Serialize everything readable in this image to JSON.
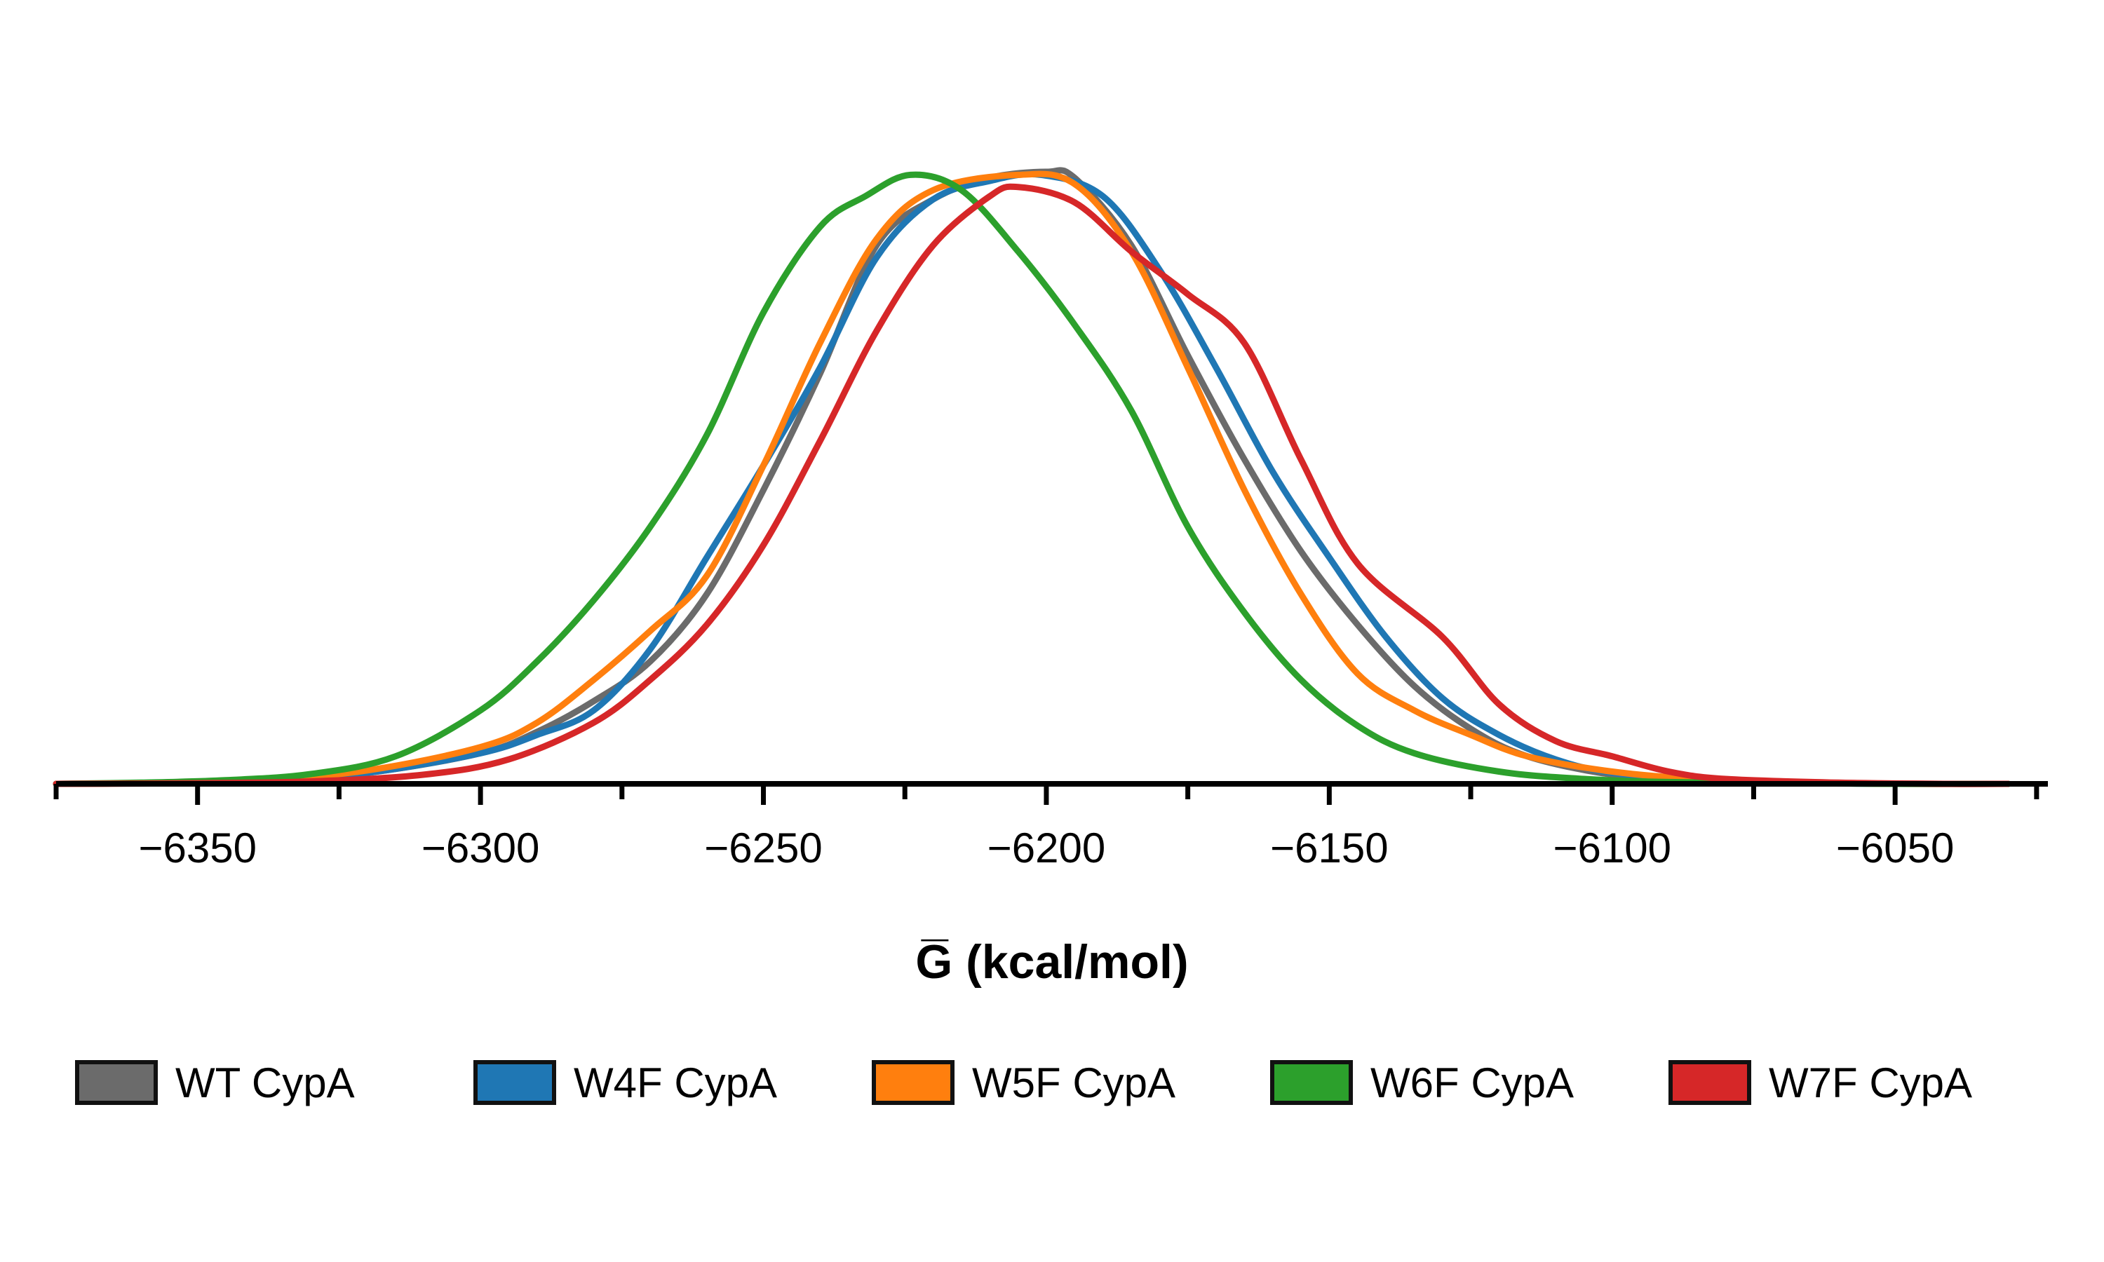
{
  "chart_data": {
    "type": "line",
    "title": "",
    "xlabel": "G̅ (kcal/mol)",
    "ylabel": "",
    "xlim": [
      -6375,
      -6023
    ],
    "ylim": [
      0,
      1.0
    ],
    "x_ticks": [
      -6350,
      -6300,
      -6250,
      -6200,
      -6150,
      -6100,
      -6050
    ],
    "x_tick_labels": [
      "−6350",
      "−6300",
      "−6250",
      "−6200",
      "−6150",
      "−6100",
      "−6050"
    ],
    "x_minor_ticks": [
      -6375,
      -6325,
      -6275,
      -6225,
      -6175,
      -6125,
      -6075,
      -6025
    ],
    "grid": false,
    "legend_position": "bottom",
    "series": [
      {
        "name": "WT CypA",
        "color": "#6b6b6b",
        "x": [
          -6375,
          -6360,
          -6340,
          -6320,
          -6300,
          -6290,
          -6280,
          -6270,
          -6260,
          -6250,
          -6240,
          -6230,
          -6220,
          -6210,
          -6200,
          -6195,
          -6185,
          -6175,
          -6165,
          -6155,
          -6145,
          -6135,
          -6125,
          -6115,
          -6100,
          -6085,
          -6070,
          -6050,
          -6030
        ],
        "y": [
          0,
          0.001,
          0.004,
          0.018,
          0.05,
          0.085,
          0.135,
          0.2,
          0.31,
          0.48,
          0.67,
          0.88,
          0.955,
          0.99,
          1.0,
          0.99,
          0.88,
          0.7,
          0.53,
          0.38,
          0.26,
          0.16,
          0.09,
          0.045,
          0.015,
          0.005,
          0.002,
          0,
          0
        ]
      },
      {
        "name": "W4F CypA",
        "color": "#1f77b4",
        "x": [
          -6375,
          -6360,
          -6340,
          -6320,
          -6300,
          -6290,
          -6280,
          -6270,
          -6260,
          -6250,
          -6240,
          -6230,
          -6220,
          -6210,
          -6201,
          -6190,
          -6180,
          -6170,
          -6160,
          -6150,
          -6140,
          -6130,
          -6120,
          -6110,
          -6100,
          -6085,
          -6070,
          -6050,
          -6030
        ],
        "y": [
          0,
          0.001,
          0.004,
          0.018,
          0.05,
          0.08,
          0.12,
          0.22,
          0.37,
          0.52,
          0.68,
          0.86,
          0.955,
          0.985,
          0.995,
          0.96,
          0.84,
          0.68,
          0.51,
          0.37,
          0.24,
          0.14,
          0.08,
          0.04,
          0.018,
          0.007,
          0.002,
          0,
          0
        ]
      },
      {
        "name": "W5F CypA",
        "color": "#ff7f0e",
        "x": [
          -6375,
          -6360,
          -6340,
          -6320,
          -6300,
          -6290,
          -6280,
          -6270,
          -6260,
          -6250,
          -6240,
          -6230,
          -6220,
          -6205,
          -6195,
          -6185,
          -6175,
          -6165,
          -6155,
          -6145,
          -6135,
          -6125,
          -6115,
          -6100,
          -6085,
          -6070,
          -6050,
          -6030
        ],
        "y": [
          0,
          0.001,
          0.005,
          0.022,
          0.06,
          0.1,
          0.17,
          0.25,
          0.34,
          0.52,
          0.72,
          0.89,
          0.97,
          0.995,
          0.98,
          0.87,
          0.68,
          0.48,
          0.31,
          0.18,
          0.12,
          0.08,
          0.045,
          0.02,
          0.008,
          0.003,
          0,
          0
        ]
      },
      {
        "name": "W6F CypA",
        "color": "#2ca02c",
        "x": [
          -6375,
          -6360,
          -6345,
          -6330,
          -6315,
          -6300,
          -6290,
          -6280,
          -6270,
          -6260,
          -6250,
          -6240,
          -6232,
          -6224,
          -6215,
          -6205,
          -6195,
          -6185,
          -6175,
          -6165,
          -6155,
          -6145,
          -6135,
          -6120,
          -6105,
          -6090,
          -6070,
          -6050,
          -6030
        ],
        "y": [
          0,
          0.002,
          0.006,
          0.016,
          0.045,
          0.12,
          0.2,
          0.3,
          0.42,
          0.57,
          0.77,
          0.91,
          0.96,
          0.995,
          0.97,
          0.87,
          0.75,
          0.61,
          0.42,
          0.28,
          0.17,
          0.095,
          0.05,
          0.02,
          0.008,
          0.003,
          0.001,
          0,
          0
        ]
      },
      {
        "name": "W7F CypA",
        "color": "#d62728",
        "x": [
          -6375,
          -6350,
          -6330,
          -6310,
          -6295,
          -6280,
          -6270,
          -6260,
          -6250,
          -6240,
          -6230,
          -6220,
          -6210,
          -6205,
          -6195,
          -6185,
          -6175,
          -6165,
          -6155,
          -6145,
          -6130,
          -6120,
          -6110,
          -6100,
          -6090,
          -6080,
          -6060,
          -6040,
          -6030
        ],
        "y": [
          0,
          0.001,
          0.004,
          0.015,
          0.04,
          0.1,
          0.17,
          0.26,
          0.39,
          0.56,
          0.74,
          0.88,
          0.96,
          0.975,
          0.95,
          0.87,
          0.8,
          0.72,
          0.53,
          0.36,
          0.24,
          0.13,
          0.07,
          0.045,
          0.02,
          0.008,
          0.002,
          0,
          0
        ]
      }
    ]
  }
}
